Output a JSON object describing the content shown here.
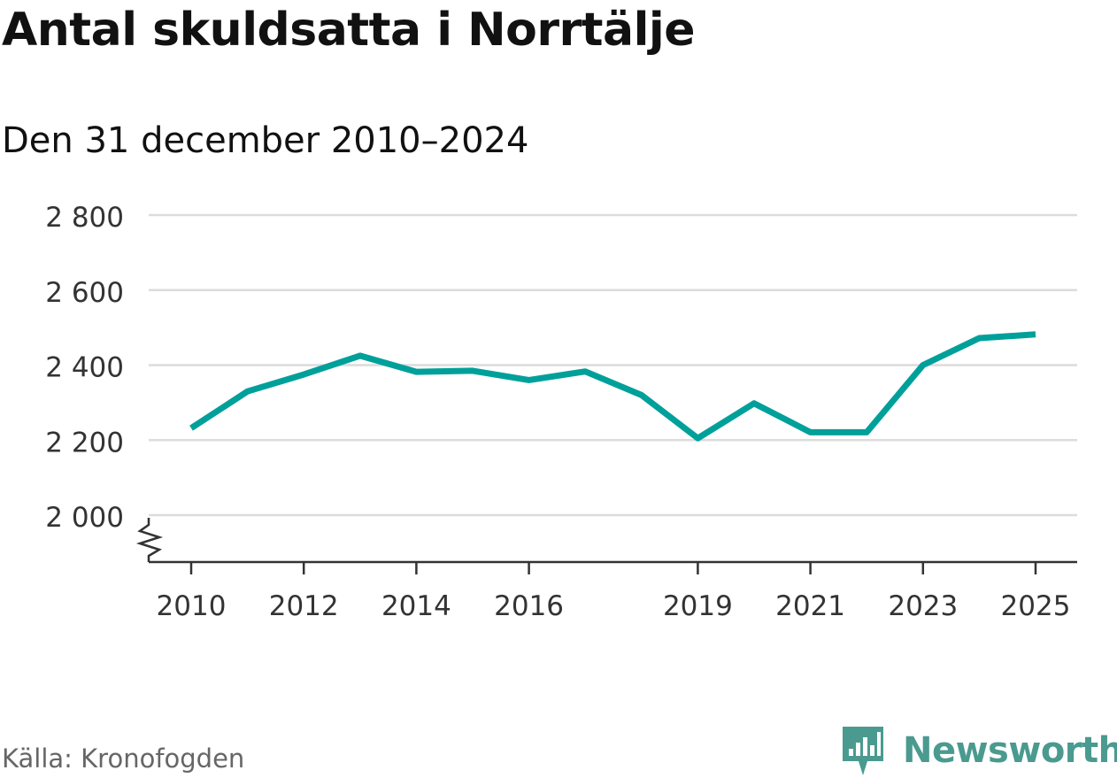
{
  "title": "Antal skuldsatta i Norrtälje",
  "subtitle": "Den 31 december 2010–2024",
  "source": "Källa: Kronofogden",
  "brand": {
    "name": "Newsworthy",
    "icon": "newsworthy-logo-icon",
    "color": "#4a9a90"
  },
  "colors": {
    "line": "#00a09a",
    "grid": "#dcdcdc",
    "axis": "#333333",
    "text": "#333333"
  },
  "chart_data": {
    "type": "line",
    "title": "Antal skuldsatta i Norrtälje",
    "subtitle": "Den 31 december 2010–2024",
    "xlabel": "",
    "ylabel": "",
    "xlim": [
      2009.2,
      2025.7
    ],
    "ylim": [
      1875,
      2800
    ],
    "axis_break": true,
    "grid": true,
    "y_ticks": [
      2000,
      2200,
      2400,
      2600,
      2800
    ],
    "y_tick_labels": [
      "2 000",
      "2 200",
      "2 400",
      "2 600",
      "2 800"
    ],
    "x_ticks": [
      2010,
      2012,
      2014,
      2016,
      2019,
      2021,
      2023,
      2025
    ],
    "x_tick_labels": [
      "2010",
      "2012",
      "2014",
      "2016",
      "2019",
      "2021",
      "2023",
      "2025"
    ],
    "series": [
      {
        "name": "Antal skuldsatta",
        "x": [
          2010,
          2011,
          2012,
          2013,
          2014,
          2015,
          2016,
          2017,
          2018,
          2019,
          2020,
          2021,
          2022,
          2023,
          2024,
          2025
        ],
        "values": [
          2232,
          2330,
          2375,
          2425,
          2382,
          2385,
          2360,
          2383,
          2320,
          2205,
          2298,
          2221,
          2221,
          2400,
          2472,
          2482
        ]
      }
    ]
  }
}
